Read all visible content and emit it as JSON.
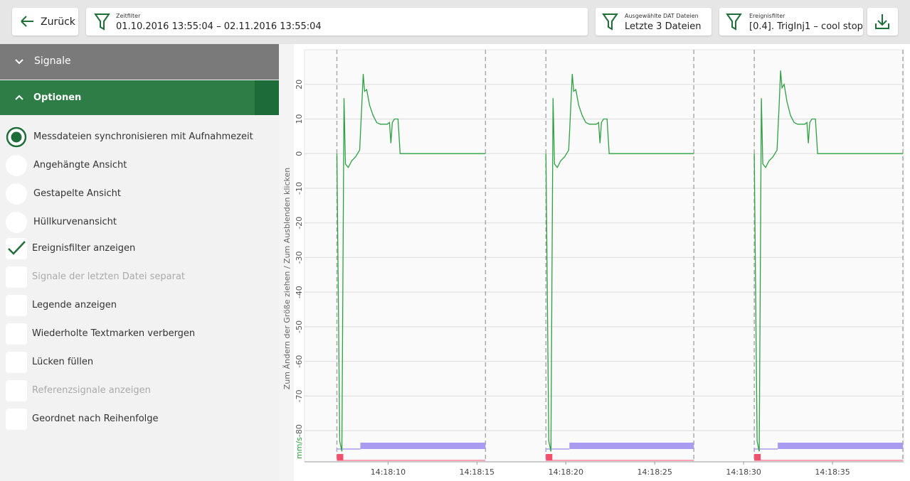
{
  "header": {
    "back": "Zurück",
    "time_filter": {
      "label": "Zeitfilter",
      "value": "01.10.2016 13:55:04 – 02.11.2016 13:55:04"
    },
    "dat_files": {
      "label": "Ausgewählte DAT Dateien",
      "value": "Letzte 3 Dateien"
    },
    "event_filter": {
      "label": "Ereignisfilter",
      "value": "[0.4]. TrigInj1 – cool stop"
    }
  },
  "sidebar": {
    "signals": "Signale",
    "options_title": "Optionen",
    "options": [
      {
        "label": "Messdateien synchronisieren mit Aufnahmezeit",
        "kind": "radio",
        "checked": true,
        "disabled": false
      },
      {
        "label": "Angehängte Ansicht",
        "kind": "radio",
        "checked": false,
        "disabled": false
      },
      {
        "label": "Gestapelte Ansicht",
        "kind": "radio",
        "checked": false,
        "disabled": false
      },
      {
        "label": "Hüllkurvenansicht",
        "kind": "radio",
        "checked": false,
        "disabled": false
      },
      {
        "label": "Ereignisfilter anzeigen",
        "kind": "checkbox",
        "checked": true,
        "disabled": false
      },
      {
        "label": "Signale der letzten Datei separat",
        "kind": "checkbox",
        "checked": false,
        "disabled": true
      },
      {
        "label": "Legende anzeigen",
        "kind": "checkbox",
        "checked": false,
        "disabled": false
      },
      {
        "label": "Wiederholte Textmarken verbergen",
        "kind": "checkbox",
        "checked": false,
        "disabled": false
      },
      {
        "label": "Lücken füllen",
        "kind": "checkbox",
        "checked": false,
        "disabled": false
      },
      {
        "label": "Referenzsignale anzeigen",
        "kind": "checkbox",
        "checked": false,
        "disabled": true
      },
      {
        "label": "Geordnet nach Reihenfolge",
        "kind": "checkbox",
        "checked": false,
        "disabled": false
      }
    ]
  },
  "resize_hint": "Zum Ändern der Größe ziehen / Zum Ausblenden klicken",
  "chart_data": {
    "type": "line",
    "y_unit": "mm/s",
    "color": "#2ea043",
    "grid": true,
    "xlim": [
      5.3,
      39
    ],
    "ylim": [
      -89,
      30
    ],
    "yticks": [
      20,
      10,
      0,
      -10,
      -20,
      -30,
      -40,
      -50,
      -60,
      -70,
      -80
    ],
    "xticks": [
      {
        "value": 10,
        "label": "14:18:10"
      },
      {
        "value": 15,
        "label": "14:18:15"
      },
      {
        "value": 20,
        "label": "14:18:20"
      },
      {
        "value": 25,
        "label": "14:18:25"
      },
      {
        "value": 30,
        "label": "14:18:30"
      },
      {
        "value": 35,
        "label": "14:18:35"
      }
    ],
    "file_boundaries": [
      7.12,
      15.48,
      18.88,
      27.2,
      30.6,
      38.96
    ],
    "event_lane": {
      "color": "#a99cf0",
      "starts": [
        8.44,
        20.2,
        31.92
      ]
    },
    "event_marker_color": "#f0506e",
    "x": [
      7.12,
      7.28,
      7.4,
      7.52,
      7.6,
      7.76,
      7.96,
      8.16,
      8.4,
      8.52,
      8.6,
      8.68,
      8.8,
      8.96,
      9.16,
      9.36,
      9.56,
      9.96,
      10.08,
      10.16,
      10.24,
      10.36,
      10.56,
      10.68,
      15.48,
      17,
      18.88,
      19.04,
      19.16,
      19.28,
      19.36,
      19.52,
      19.72,
      19.92,
      20.16,
      20.28,
      20.36,
      20.44,
      20.56,
      20.72,
      20.92,
      21.12,
      21.32,
      21.72,
      21.84,
      21.92,
      22.0,
      22.12,
      22.32,
      22.44,
      27.2,
      29,
      30.6,
      30.76,
      30.88,
      31.0,
      31.08,
      31.24,
      31.44,
      31.64,
      31.88,
      32.0,
      32.08,
      32.16,
      32.28,
      32.44,
      32.64,
      32.84,
      33.04,
      33.44,
      33.56,
      33.64,
      33.72,
      33.84,
      34.04,
      34.16,
      38.96
    ],
    "values": [
      0,
      -83,
      -86,
      16,
      -3,
      -4,
      -2,
      -1,
      1,
      14,
      23,
      18,
      18.5,
      14,
      11,
      9,
      8.5,
      8.5,
      9,
      3,
      9,
      10,
      10,
      0,
      0,
      null,
      0,
      -83,
      -86,
      16,
      -3,
      -4,
      -2,
      -1,
      1,
      14,
      23,
      18,
      18.5,
      14,
      11,
      9,
      8.5,
      8.5,
      9,
      3,
      9,
      10,
      10,
      0,
      0,
      null,
      0,
      -83,
      -86,
      16,
      -3,
      -4,
      -2,
      -1,
      1,
      14,
      24,
      19,
      20,
      15,
      11,
      9,
      8.5,
      8.5,
      9,
      3,
      9,
      10,
      10,
      0,
      0
    ]
  }
}
